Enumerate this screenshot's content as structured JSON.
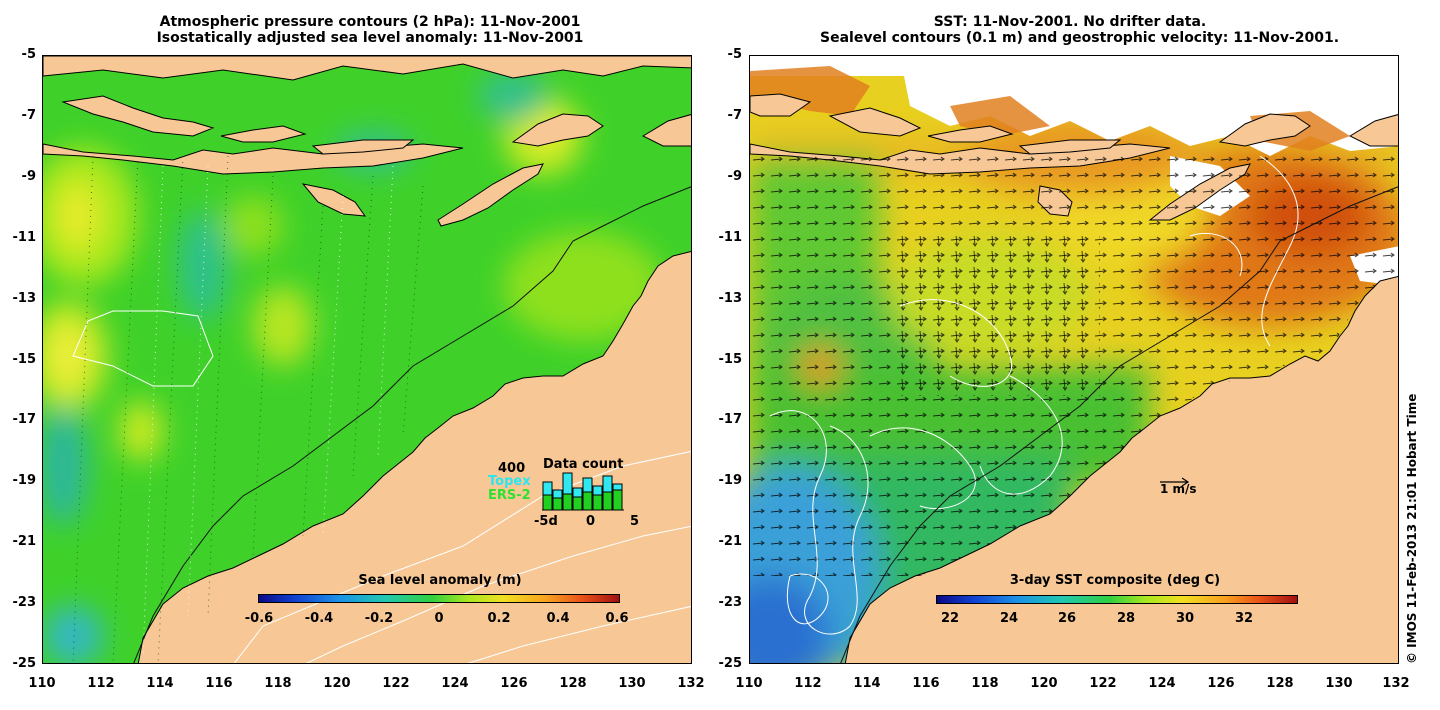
{
  "left_panel": {
    "title_line1": "Atmospheric pressure contours (2 hPa): 11-Nov-2001",
    "title_line2": "Isostatically adjusted sea level anomaly: 11-Nov-2001",
    "colorbar": {
      "title": "Sea level anomaly (m)",
      "labels": [
        "-0.6",
        "-0.4",
        "-0.2",
        "0",
        "0.2",
        "0.4",
        "0.6"
      ]
    },
    "data_count": {
      "title": "Data count",
      "max_label": "400",
      "series1": "Topex",
      "series2": "ERS-2",
      "x_labels": [
        "-5d",
        "0",
        "5"
      ]
    }
  },
  "right_panel": {
    "title_line1": "SST: 11-Nov-2001. No drifter data.",
    "title_line2": "Sealevel contours (0.1 m) and geostrophic velocity: 11-Nov-2001.",
    "colorbar": {
      "title": "3-day SST composite (deg C)",
      "labels": [
        "22",
        "24",
        "26",
        "28",
        "30",
        "32"
      ]
    },
    "velocity_scale": "1 m/s"
  },
  "y_ticks": [
    "-5",
    "-7",
    "-9",
    "-11",
    "-13",
    "-15",
    "-17",
    "-19",
    "-21",
    "-23",
    "-25"
  ],
  "x_ticks": [
    "110",
    "112",
    "114",
    "116",
    "118",
    "120",
    "122",
    "124",
    "126",
    "128",
    "130",
    "132"
  ],
  "copyright": "© IMOS 11-Feb-2013 21:01 Hobart Time",
  "colors": {
    "land": "#f7c896",
    "sla_base": "#3fd12a",
    "sst_base": "#f0d020"
  }
}
